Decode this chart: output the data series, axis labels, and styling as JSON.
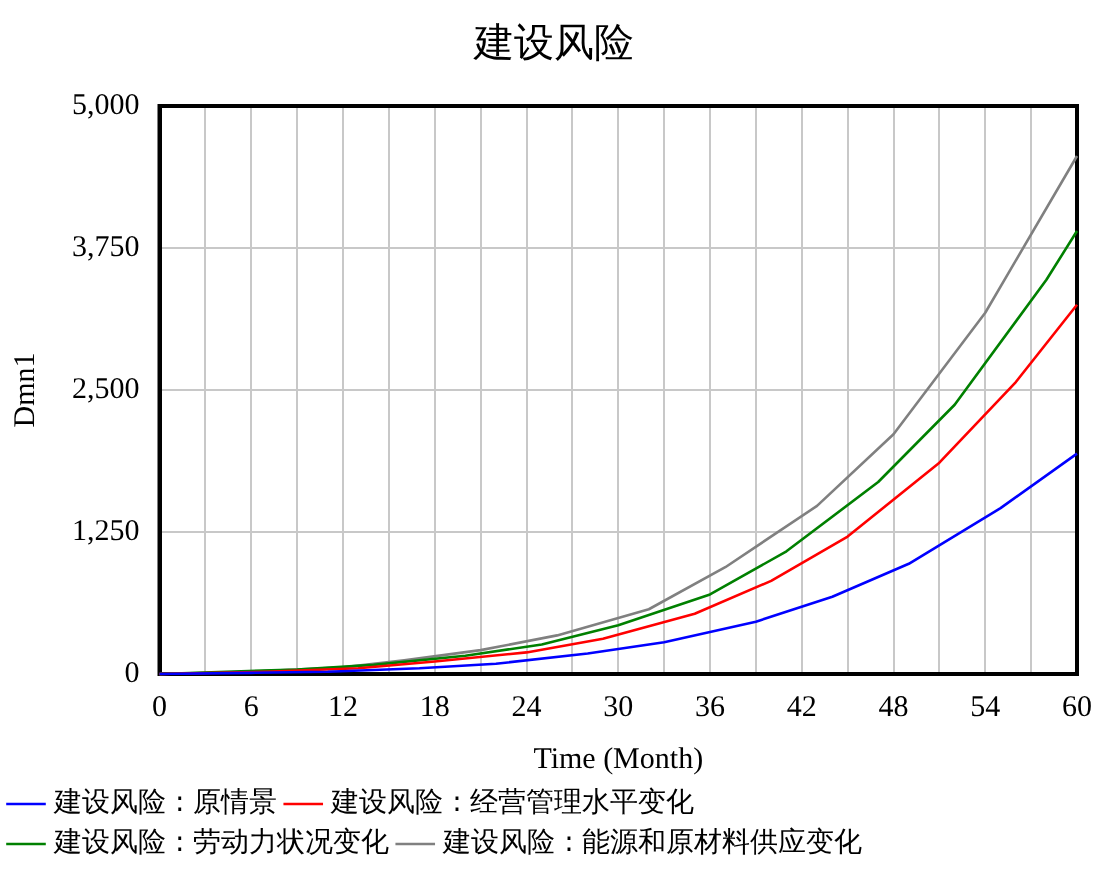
{
  "chart_data": {
    "type": "line",
    "title": "建设风险",
    "xlabel": "Time (Month)",
    "ylabel": "Dmn1",
    "xlim": [
      0,
      60
    ],
    "xticks": [
      0,
      {
        "value": 3,
        "label": null
      },
      6,
      {
        "value": 9,
        "label": null
      },
      12,
      {
        "value": 15,
        "label": null
      },
      18,
      {
        "value": 21,
        "label": null
      },
      24,
      {
        "value": 27,
        "label": null
      },
      30,
      {
        "value": 33,
        "label": null
      },
      36,
      {
        "value": 39,
        "label": null
      },
      42,
      {
        "value": 45,
        "label": null
      },
      48,
      {
        "value": 51,
        "label": null
      },
      54,
      {
        "value": 57,
        "label": null
      },
      60
    ],
    "ylim": [
      0,
      5000
    ],
    "yticks": [
      0,
      {
        "value": 1250,
        "label": "1,250"
      },
      {
        "value": 2500,
        "label": "2,500"
      },
      {
        "value": 3750,
        "label": "3,750"
      },
      {
        "value": 5000,
        "label": "5,000"
      }
    ],
    "grid": true,
    "legend": "bottom",
    "marker": "none",
    "line_style": "solid",
    "series": [
      {
        "name": "建设风险 : 原情景",
        "color": "#0000ff",
        "x": [
          0,
          6,
          11,
          17,
          22,
          28,
          33,
          39,
          44,
          49,
          55,
          60
        ],
        "values": [
          0,
          10,
          20,
          50,
          90,
          180,
          280,
          460,
          680,
          970,
          1460,
          1940
        ]
      },
      {
        "name": "建设风险 : 经营管理水平变化",
        "color": "#ff0000",
        "x": [
          0,
          7,
          13,
          18,
          24,
          29,
          35,
          40,
          45,
          51,
          56,
          60
        ],
        "values": [
          0,
          20,
          50,
          110,
          190,
          310,
          530,
          820,
          1210,
          1860,
          2570,
          3250
        ]
      },
      {
        "name": "建设风险 : 劳动力状况变化",
        "color": "#008000",
        "x": [
          0,
          9,
          14,
          20,
          25,
          30,
          36,
          41,
          47,
          52,
          58,
          60
        ],
        "values": [
          0,
          40,
          80,
          160,
          260,
          430,
          700,
          1080,
          1690,
          2370,
          3470,
          3900
        ]
      },
      {
        "name": "建设风险 : 能源和原材料供应变化",
        "color": "#808080",
        "x": [
          0,
          6,
          12,
          16,
          21,
          26,
          32,
          37,
          43,
          48,
          54,
          60
        ],
        "values": [
          0,
          20,
          60,
          120,
          210,
          340,
          570,
          940,
          1480,
          2110,
          3180,
          4560
        ]
      }
    ]
  }
}
